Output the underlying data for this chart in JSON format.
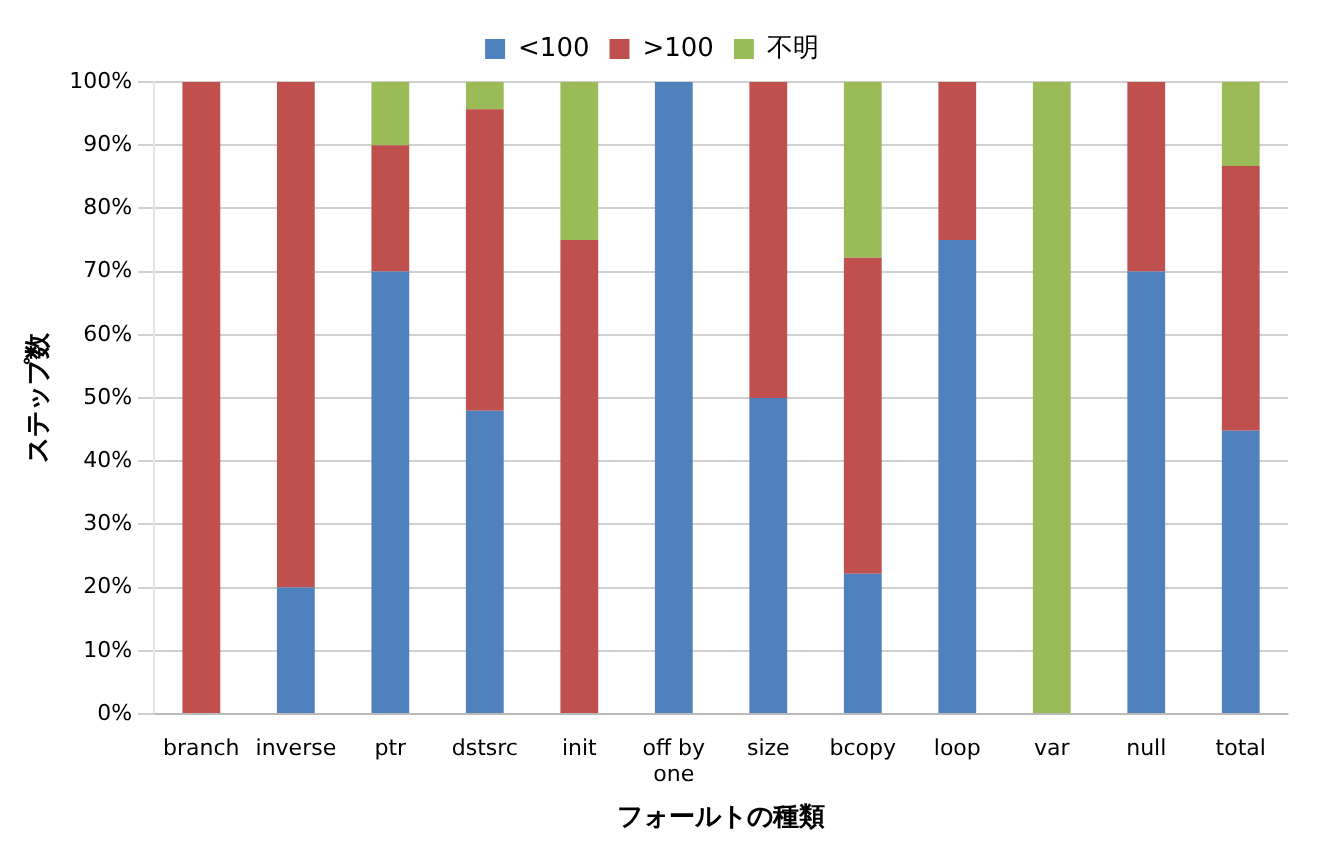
{
  "chart_data": {
    "type": "bar",
    "stacked": true,
    "xlabel": "フォールトの種類",
    "ylabel": "ステップ数",
    "categories": [
      "branch",
      "inverse",
      "ptr",
      "dstsrc",
      "init",
      "off by one",
      "size",
      "bcopy",
      "loop",
      "var",
      "null",
      "total"
    ],
    "series": [
      {
        "name": "<100",
        "color": "#4f81bd",
        "values": [
          0,
          20,
          70,
          48,
          0,
          100,
          50,
          22.2,
          75,
          0,
          70,
          44.8
        ]
      },
      {
        "name": ">100",
        "color": "#c0504d",
        "values": [
          100,
          80,
          20,
          47.7,
          75,
          0,
          50,
          50,
          25,
          0,
          30,
          41.9
        ]
      },
      {
        "name": "不明",
        "color": "#9bbb59",
        "values": [
          0,
          0,
          10,
          4.3,
          25,
          0,
          0,
          27.8,
          0,
          100,
          0,
          13.3
        ]
      }
    ],
    "ylim": [
      0,
      100
    ],
    "yticks": [
      {
        "value": 0,
        "label": "0%"
      },
      {
        "value": 10,
        "label": "10%"
      },
      {
        "value": 20,
        "label": "20%"
      },
      {
        "value": 30,
        "label": "30%"
      },
      {
        "value": 40,
        "label": "40%"
      },
      {
        "value": 50,
        "label": "50%"
      },
      {
        "value": 60,
        "label": "60%"
      },
      {
        "value": 70,
        "label": "70%"
      },
      {
        "value": 80,
        "label": "80%"
      },
      {
        "value": 90,
        "label": "90%"
      },
      {
        "value": 100,
        "label": "100%"
      }
    ],
    "grid": "y",
    "legend": "top"
  }
}
